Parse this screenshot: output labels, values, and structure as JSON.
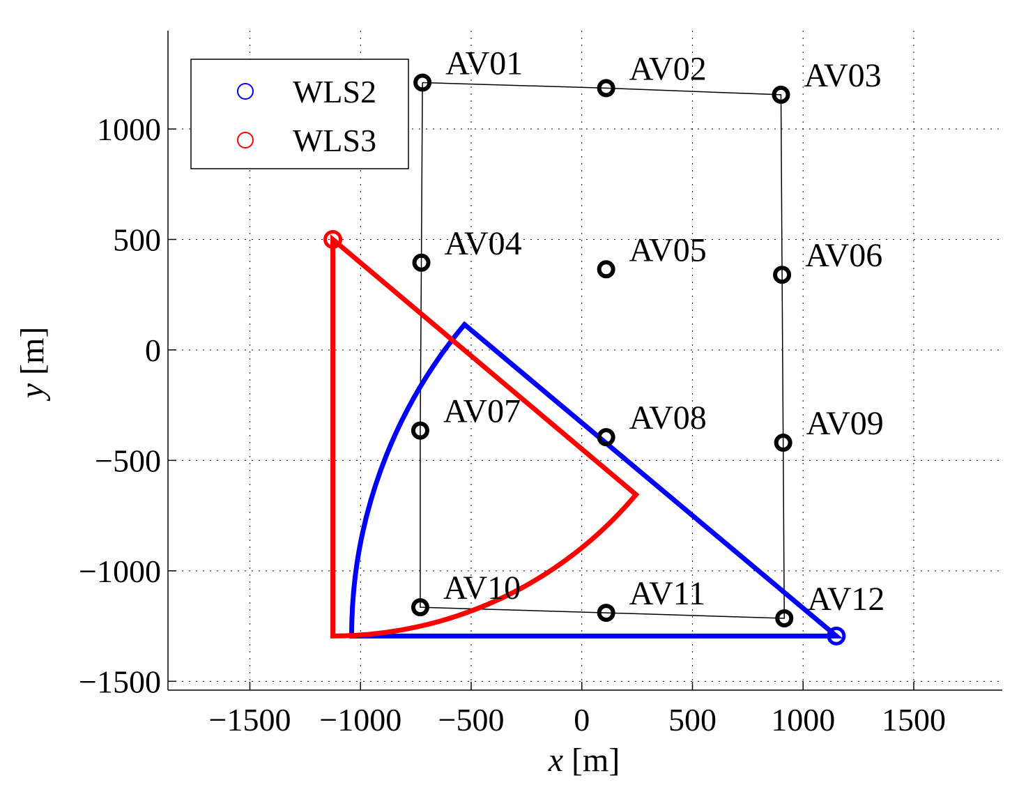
{
  "chart_data": {
    "type": "scatter",
    "xlabel_var": "x",
    "xlabel_unit": "[m]",
    "ylabel_var": "y",
    "ylabel_unit": "[m]",
    "xlim": [
      -1870,
      1900
    ],
    "ylim": [
      -1540,
      1445
    ],
    "grid": true,
    "legend_position": "top-left",
    "xticks": [
      {
        "value": -1500,
        "label": "−1500"
      },
      {
        "value": -1000,
        "label": "−1000"
      },
      {
        "value": -500,
        "label": "−500"
      },
      {
        "value": 0,
        "label": "0"
      },
      {
        "value": 500,
        "label": "500"
      },
      {
        "value": 1000,
        "label": "1000"
      },
      {
        "value": 1500,
        "label": "1500"
      }
    ],
    "yticks": [
      {
        "value": -1500,
        "label": "−1500"
      },
      {
        "value": -1000,
        "label": "−1000"
      },
      {
        "value": -500,
        "label": "−500"
      },
      {
        "value": 0,
        "label": "0"
      },
      {
        "value": 500,
        "label": "500"
      },
      {
        "value": 1000,
        "label": "1000"
      }
    ],
    "stations": [
      {
        "name": "AV01",
        "x": -720,
        "y": 1210
      },
      {
        "name": "AV02",
        "x": 110,
        "y": 1185
      },
      {
        "name": "AV03",
        "x": 900,
        "y": 1155
      },
      {
        "name": "AV04",
        "x": -725,
        "y": 395
      },
      {
        "name": "AV05",
        "x": 110,
        "y": 365
      },
      {
        "name": "AV06",
        "x": 905,
        "y": 340
      },
      {
        "name": "AV07",
        "x": -730,
        "y": -365
      },
      {
        "name": "AV08",
        "x": 110,
        "y": -395
      },
      {
        "name": "AV09",
        "x": 910,
        "y": -420
      },
      {
        "name": "AV10",
        "x": -730,
        "y": -1165
      },
      {
        "name": "AV11",
        "x": 110,
        "y": -1190
      },
      {
        "name": "AV12",
        "x": 915,
        "y": -1215
      }
    ],
    "station_outline_order": [
      "AV01",
      "AV02",
      "AV03",
      "AV06",
      "AV09",
      "AV12",
      "AV11",
      "AV10",
      "AV07",
      "AV04",
      "AV01"
    ],
    "series": [
      {
        "name": "WLS2",
        "color": "#0000ff",
        "marker": {
          "x": 1150,
          "y": -1295
        },
        "shape": {
          "center": [
            1150,
            -1295
          ],
          "vertices": [
            [
              1150,
              -1295
            ],
            [
              -1040,
              -1295
            ],
            [
              -530,
              115
            ],
            [
              1150,
              -1295
            ]
          ],
          "arc_from": [
            -1040,
            -1295
          ],
          "arc_to": [
            -530,
            115
          ]
        }
      },
      {
        "name": "WLS3",
        "color": "#ff0000",
        "marker": {
          "x": -1125,
          "y": 500
        },
        "shape": {
          "center": [
            -1125,
            500
          ],
          "vertices": [
            [
              -1125,
              500
            ],
            [
              -1125,
              -1295
            ],
            [
              245,
              -655
            ],
            [
              -1125,
              500
            ]
          ],
          "arc_from": [
            -1125,
            -1295
          ],
          "arc_to": [
            245,
            -655
          ]
        }
      }
    ],
    "station_color": "#000000"
  }
}
